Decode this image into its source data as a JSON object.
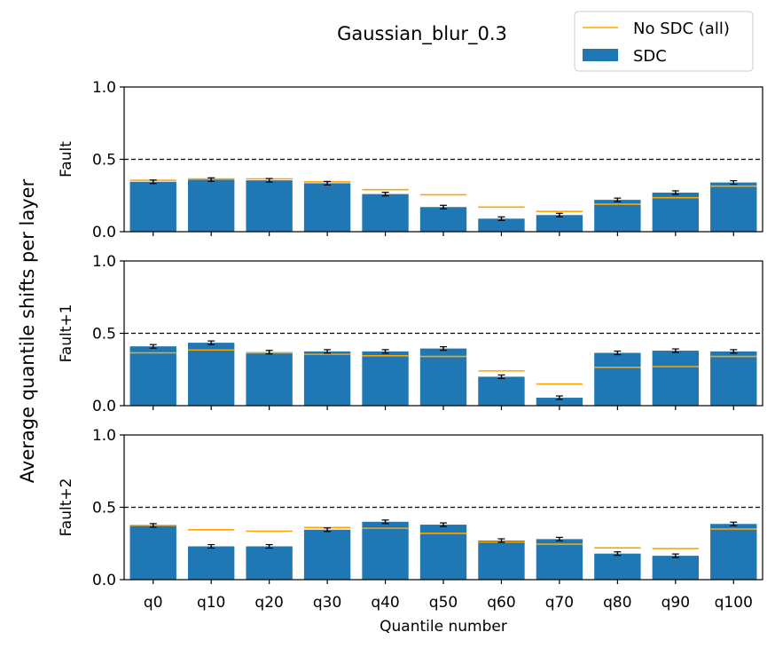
{
  "chart_data": {
    "type": "bar",
    "title": "Gaussian_blur_0.3",
    "xlabel": "Quantile number",
    "ylabel": "Average quantile shifts per layer",
    "categories": [
      "q0",
      "q10",
      "q20",
      "q30",
      "q40",
      "q50",
      "q60",
      "q70",
      "q80",
      "q90",
      "q100"
    ],
    "ylim": [
      0,
      1
    ],
    "yticks": [
      "0.0",
      "0.5",
      "1.0"
    ],
    "reference_line": 0.5,
    "legend": {
      "position": "top-right",
      "entries": [
        {
          "label": "No SDC (all)",
          "kind": "line",
          "color": "#ffa500"
        },
        {
          "label": "SDC",
          "kind": "bar",
          "color": "#1f77b4"
        }
      ]
    },
    "panels": [
      {
        "label": "Fault",
        "sdc": [
          0.345,
          0.36,
          0.355,
          0.335,
          0.26,
          0.17,
          0.09,
          0.115,
          0.22,
          0.27,
          0.34
        ],
        "no_sdc": [
          0.355,
          0.365,
          0.365,
          0.345,
          0.29,
          0.255,
          0.17,
          0.14,
          0.19,
          0.235,
          0.315
        ]
      },
      {
        "label": "Fault+1",
        "sdc": [
          0.41,
          0.435,
          0.37,
          0.375,
          0.375,
          0.395,
          0.2,
          0.055,
          0.365,
          0.38,
          0.375
        ],
        "no_sdc": [
          0.365,
          0.385,
          0.365,
          0.355,
          0.345,
          0.34,
          0.24,
          0.15,
          0.265,
          0.27,
          0.34
        ]
      },
      {
        "label": "Fault+2",
        "sdc": [
          0.375,
          0.23,
          0.23,
          0.345,
          0.4,
          0.38,
          0.27,
          0.28,
          0.18,
          0.165,
          0.385
        ],
        "no_sdc": [
          0.375,
          0.345,
          0.335,
          0.36,
          0.355,
          0.32,
          0.26,
          0.245,
          0.22,
          0.215,
          0.35
        ]
      }
    ]
  },
  "colors": {
    "sdc": "#1f77b4",
    "no_sdc": "#ffa500",
    "error": "#000000"
  }
}
